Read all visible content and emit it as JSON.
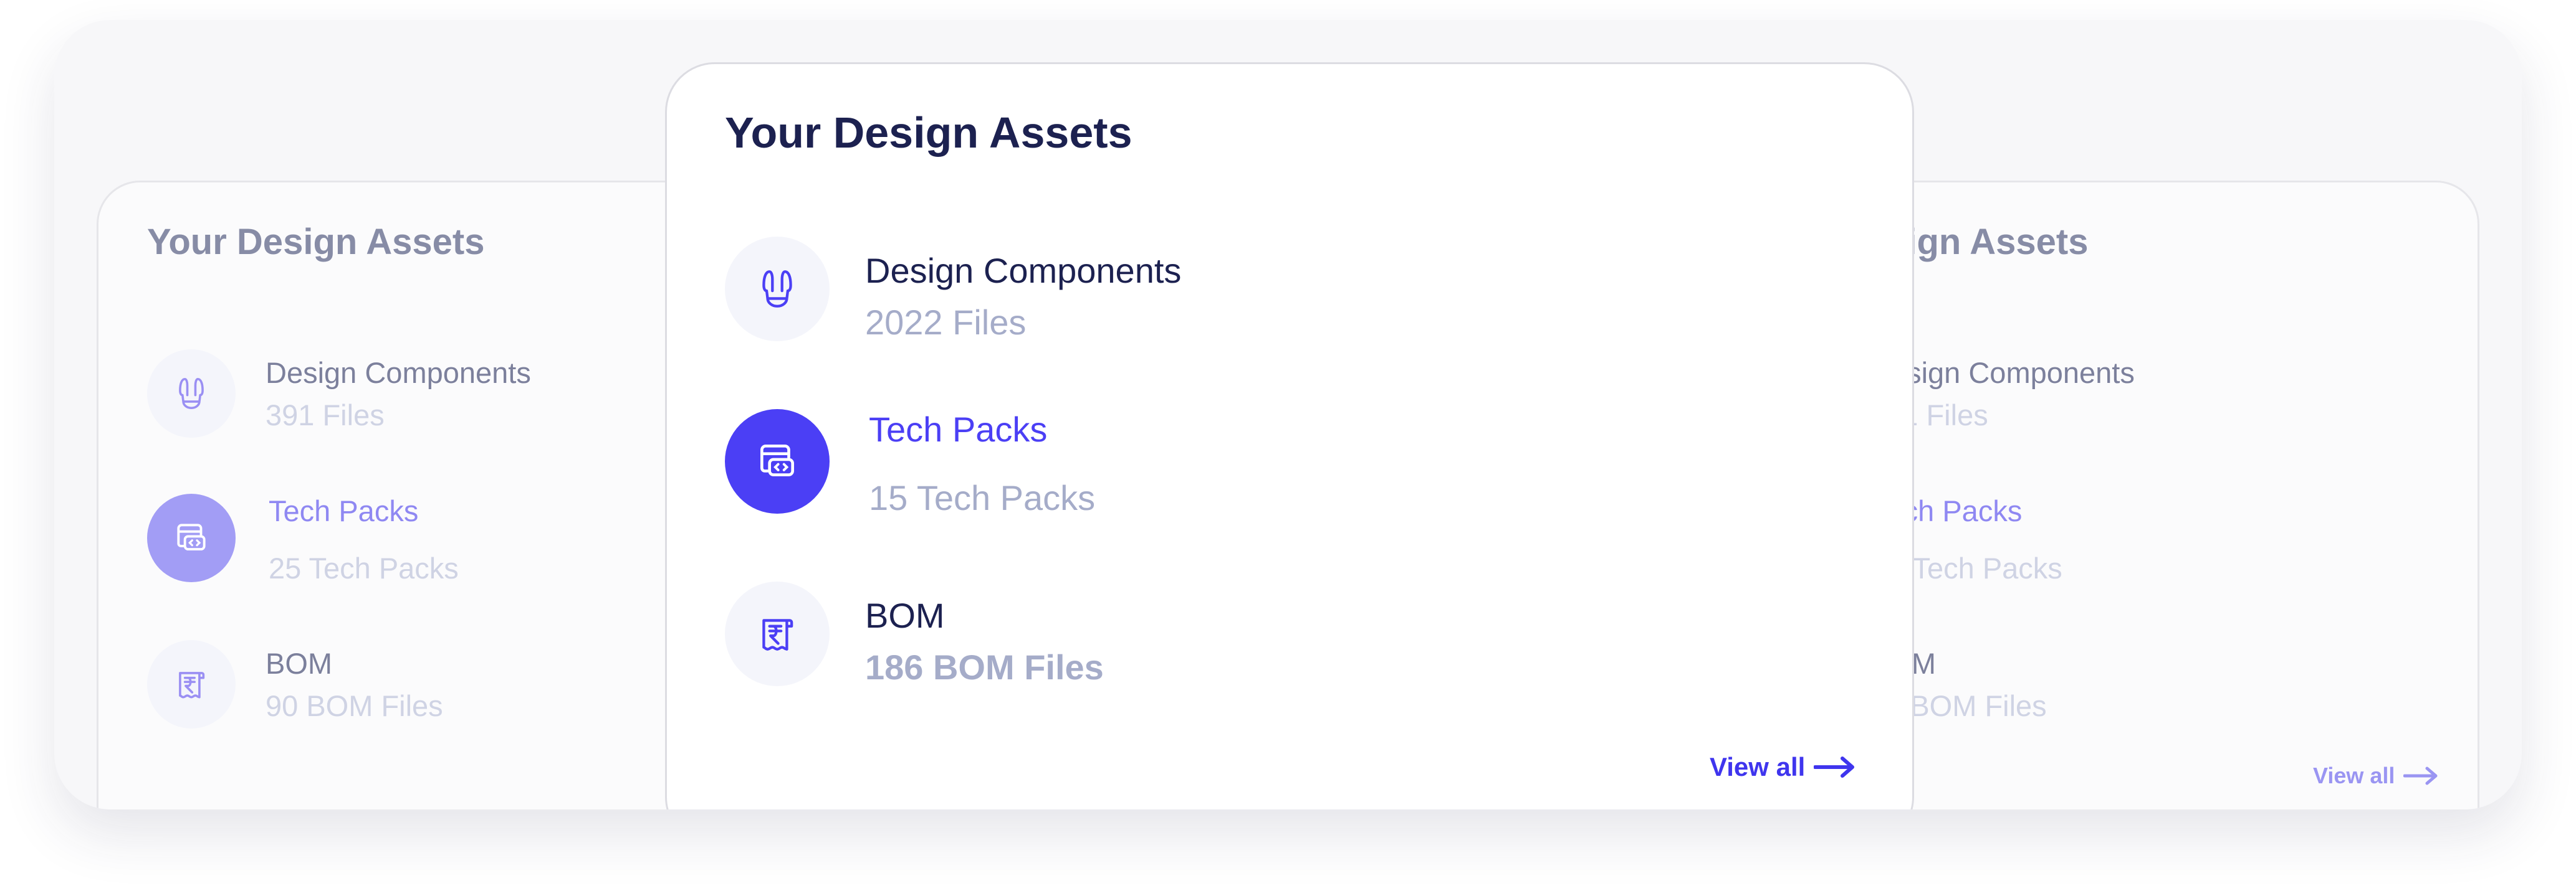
{
  "colors": {
    "accent": "#4b3ff5",
    "accent_faded": "#a29df5",
    "title_dark": "#1c2150",
    "muted": "#a5acc9"
  },
  "back_card": {
    "title": "Your Design Assets",
    "items": [
      {
        "label": "Design Components",
        "sub": "391 Files",
        "icon": "dress-icon"
      },
      {
        "label": "Tech Packs",
        "sub": "25 Tech Packs",
        "icon": "code-window-icon",
        "active": true
      },
      {
        "label": "BOM",
        "sub": "90 BOM Files",
        "icon": "rupee-receipt-icon"
      }
    ],
    "view_all": "View all"
  },
  "front_card": {
    "title": "Your Design Assets",
    "items": [
      {
        "label": "Design Components",
        "sub": "2022 Files",
        "icon": "dress-icon"
      },
      {
        "label": "Tech Packs",
        "sub": "15 Tech Packs",
        "icon": "code-window-icon",
        "active": true
      },
      {
        "label": "BOM",
        "sub": "186 BOM Files",
        "icon": "rupee-receipt-icon"
      }
    ],
    "view_all": "View all"
  }
}
